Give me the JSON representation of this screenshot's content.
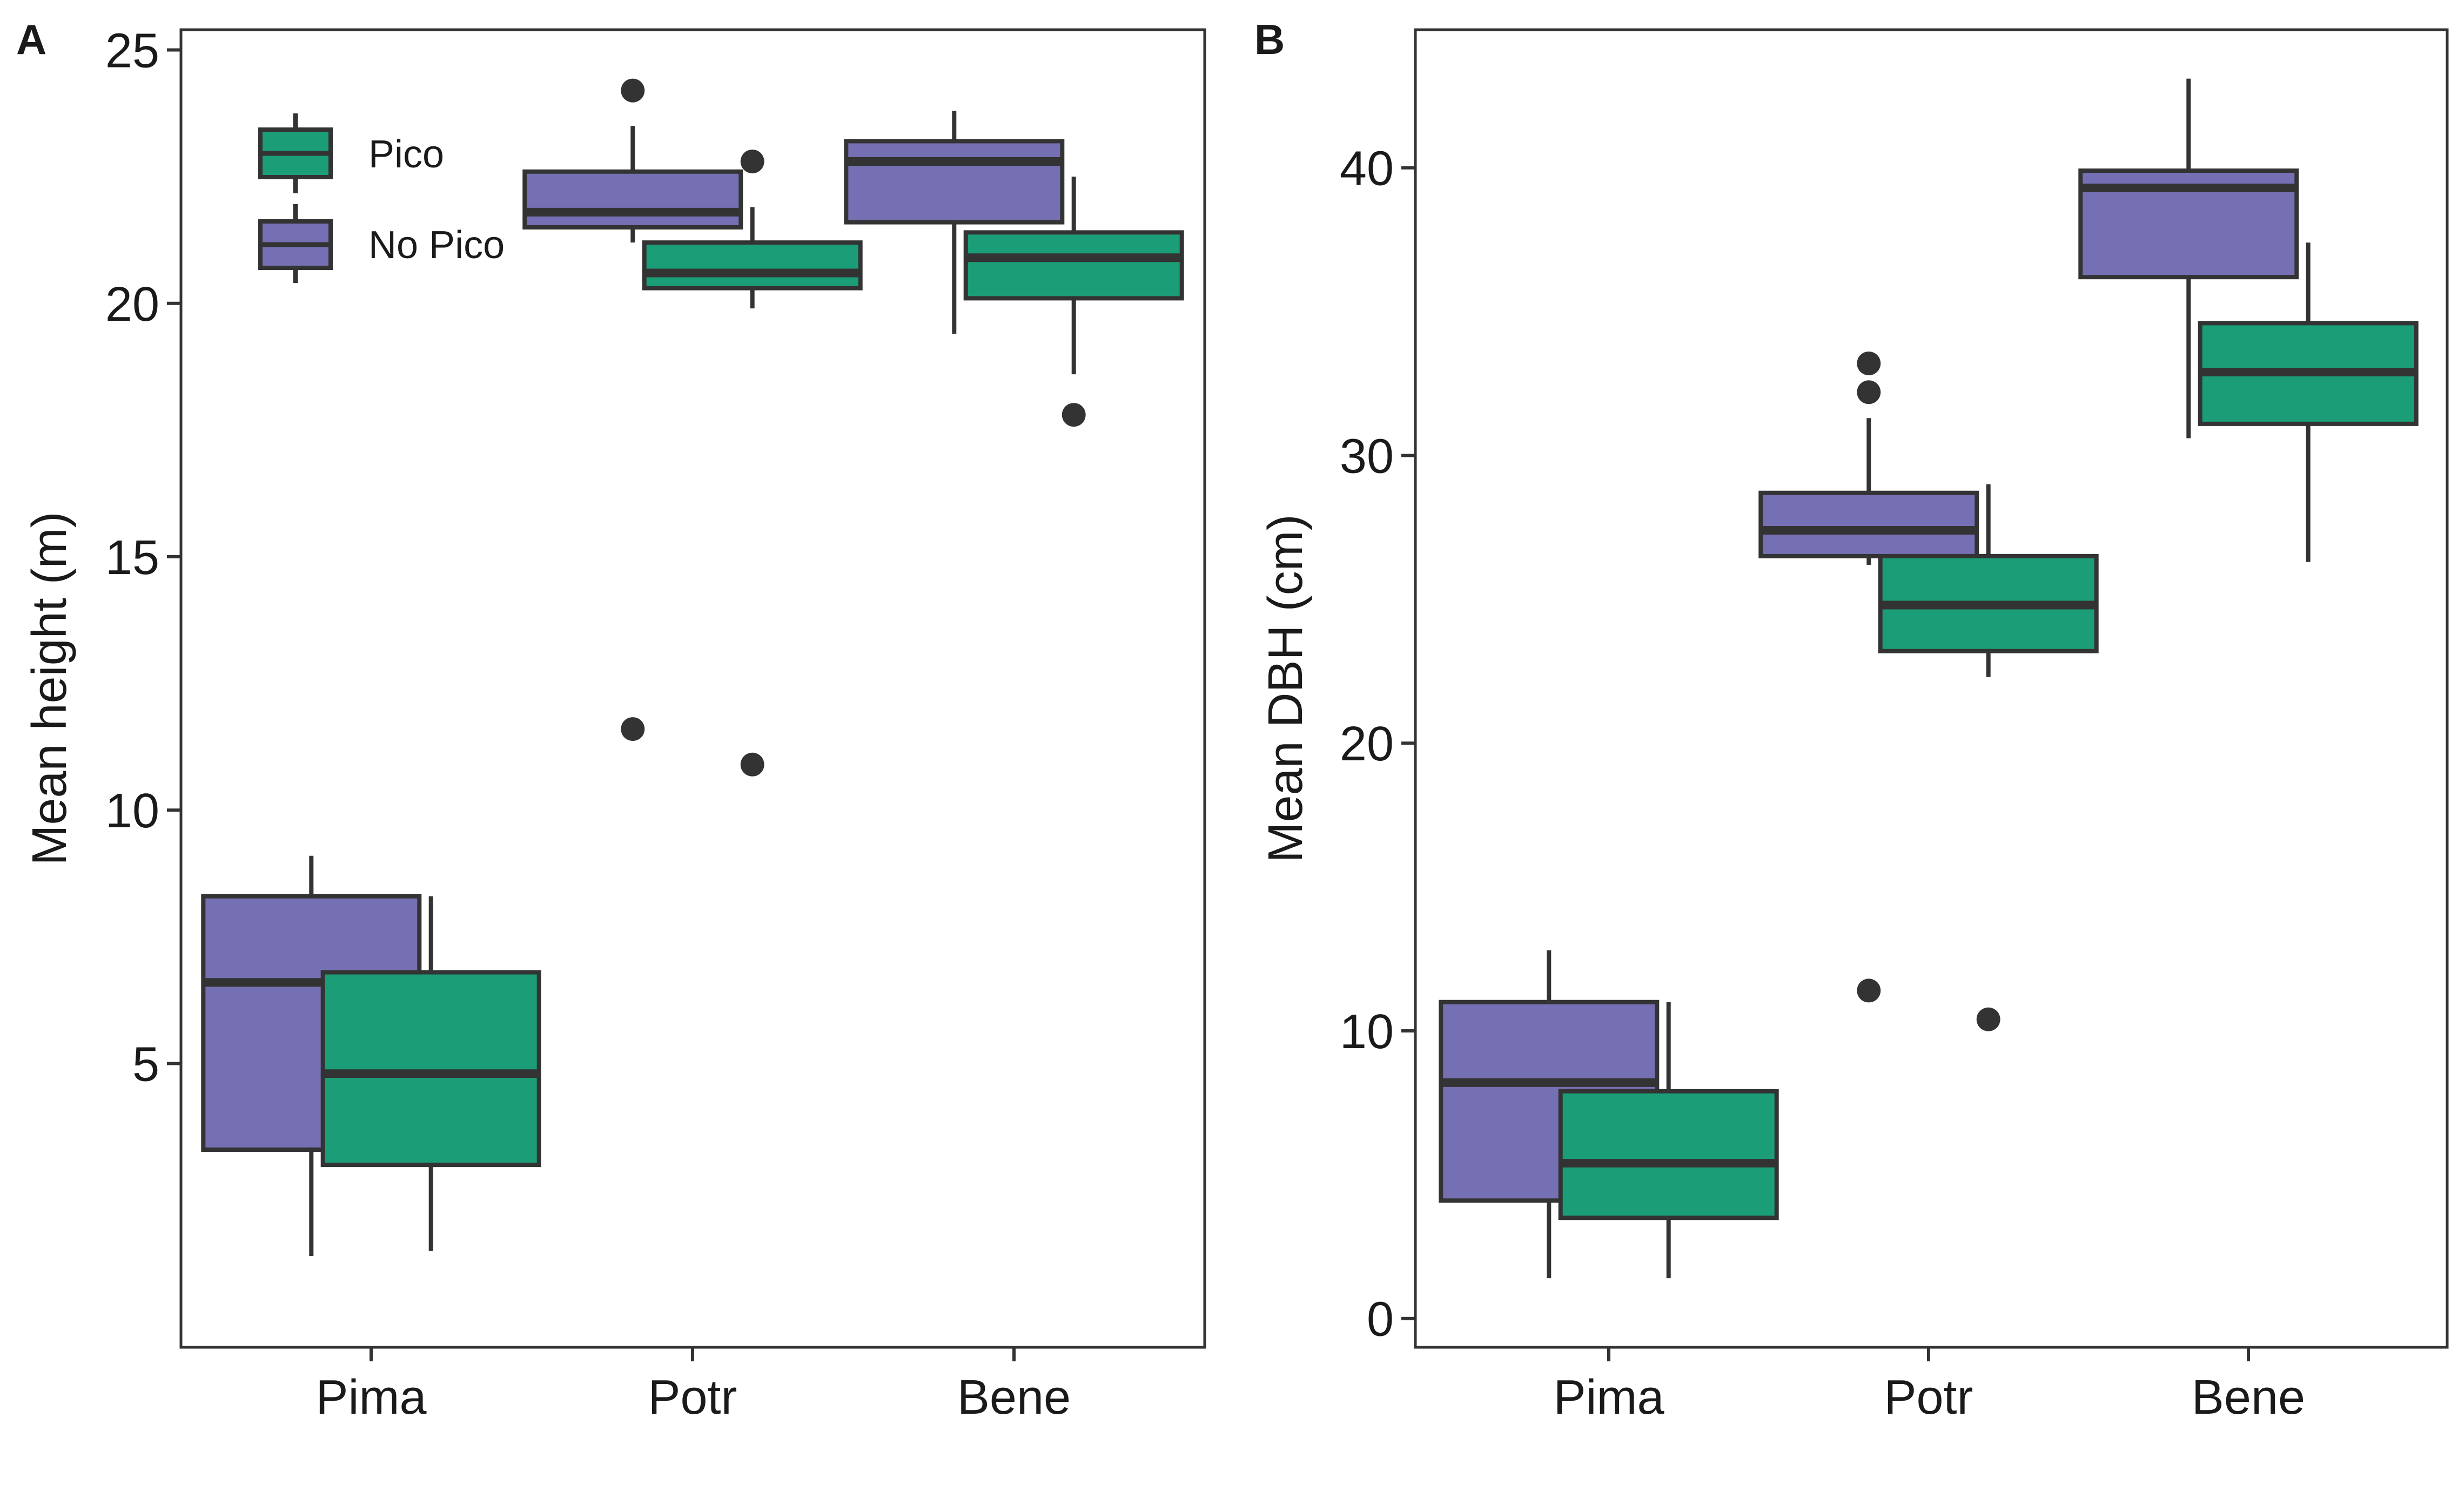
{
  "colors": {
    "pico": "#1b9e77",
    "no_pico": "#7570b3",
    "outline": "#333333",
    "frame": "#333333"
  },
  "legend": {
    "placement": "top-left",
    "entries": [
      {
        "label": "Pico",
        "key": "pico"
      },
      {
        "label": "No Pico",
        "key": "no_pico"
      }
    ]
  },
  "chart_data": [
    {
      "panel": "A",
      "type": "boxplot",
      "xlabel": "",
      "ylabel": "Mean height (m)",
      "categories": [
        "Pima",
        "Potr",
        "Bene"
      ],
      "ylim": [
        -0.6,
        25.4
      ],
      "yticks": [
        5,
        10,
        15,
        20,
        25
      ],
      "grid": false,
      "series": [
        {
          "name": "No Pico",
          "key": "no_pico",
          "boxes": [
            {
              "category": "Pima",
              "whisker_low": 1.2,
              "q1": 3.3,
              "median": 6.6,
              "q3": 8.3,
              "whisker_high": 9.1,
              "outliers": []
            },
            {
              "category": "Potr",
              "whisker_low": 21.2,
              "q1": 21.5,
              "median": 21.8,
              "q3": 22.6,
              "whisker_high": 23.5,
              "outliers": [
                24.2,
                11.6
              ]
            },
            {
              "category": "Bene",
              "whisker_low": 19.4,
              "q1": 21.6,
              "median": 22.8,
              "q3": 23.2,
              "whisker_high": 23.8,
              "outliers": []
            }
          ]
        },
        {
          "name": "Pico",
          "key": "pico",
          "boxes": [
            {
              "category": "Pima",
              "whisker_low": 1.3,
              "q1": 3.0,
              "median": 4.8,
              "q3": 6.8,
              "whisker_high": 8.3,
              "outliers": []
            },
            {
              "category": "Potr",
              "whisker_low": 19.9,
              "q1": 20.3,
              "median": 20.6,
              "q3": 21.2,
              "whisker_high": 21.9,
              "outliers": [
                22.8,
                10.9
              ]
            },
            {
              "category": "Bene",
              "whisker_low": 18.6,
              "q1": 20.1,
              "median": 20.9,
              "q3": 21.4,
              "whisker_high": 22.5,
              "outliers": [
                17.8
              ]
            }
          ]
        }
      ]
    },
    {
      "panel": "B",
      "type": "boxplot",
      "xlabel": "",
      "ylabel": "Mean DBH (cm)",
      "categories": [
        "Pima",
        "Potr",
        "Bene"
      ],
      "ylim": [
        -1.0,
        44.8
      ],
      "yticks": [
        0,
        10,
        20,
        30,
        40
      ],
      "grid": false,
      "series": [
        {
          "name": "No Pico",
          "key": "no_pico",
          "boxes": [
            {
              "category": "Pima",
              "whisker_low": 1.4,
              "q1": 4.1,
              "median": 8.2,
              "q3": 11.0,
              "whisker_high": 12.8,
              "outliers": []
            },
            {
              "category": "Potr",
              "whisker_low": 26.2,
              "q1": 26.5,
              "median": 27.4,
              "q3": 28.7,
              "whisker_high": 31.3,
              "outliers": [
                33.2,
                32.2,
                11.4
              ]
            },
            {
              "category": "Bene",
              "whisker_low": 30.6,
              "q1": 36.2,
              "median": 39.3,
              "q3": 39.9,
              "whisker_high": 43.1,
              "outliers": []
            }
          ]
        },
        {
          "name": "Pico",
          "key": "pico",
          "boxes": [
            {
              "category": "Pima",
              "whisker_low": 1.4,
              "q1": 3.5,
              "median": 5.4,
              "q3": 7.9,
              "whisker_high": 11.0,
              "outliers": []
            },
            {
              "category": "Potr",
              "whisker_low": 22.3,
              "q1": 23.2,
              "median": 24.8,
              "q3": 26.5,
              "whisker_high": 29.0,
              "outliers": [
                10.4
              ]
            },
            {
              "category": "Bene",
              "whisker_low": 26.3,
              "q1": 31.1,
              "median": 32.9,
              "q3": 34.6,
              "whisker_high": 37.4,
              "outliers": []
            }
          ]
        }
      ]
    }
  ]
}
